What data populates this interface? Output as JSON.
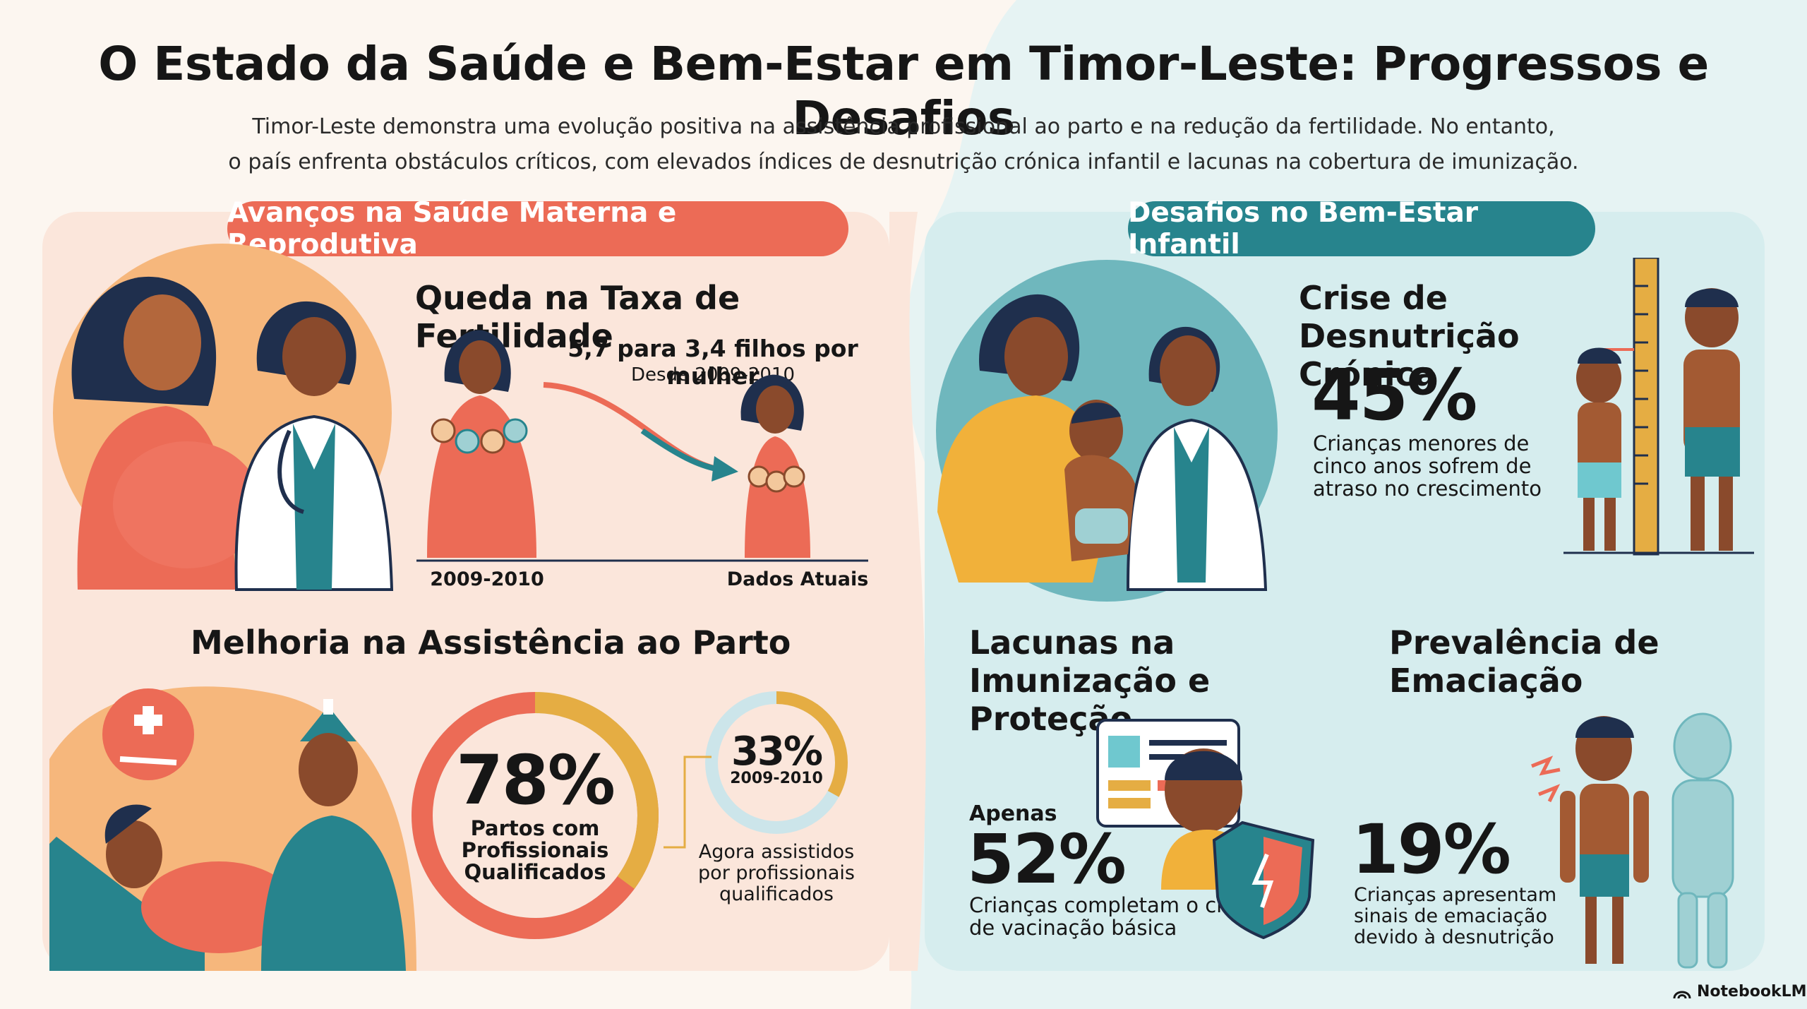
{
  "header": {
    "title": "O Estado da Saúde e Bem-Estar em Timor-Leste: Progressos e Desafios",
    "subtitle_line1": "Timor-Leste demonstra uma evolução positiva na assistência profissional ao parto e na redução da fertilidade. No entanto,",
    "subtitle_line2": "o país enfrenta obstáculos críticos, com elevados índices de desnutrição crónica infantil e lacunas na cobertura de imunização."
  },
  "left": {
    "section_label": "Avanços na Saúde Materna e Reprodutiva",
    "fertility": {
      "heading": "Queda na Taxa de Fertilidade",
      "value_text": "5,7 para 3,4 filhos por mulher",
      "since": "Desde 2009-2010",
      "start_label": "2009-2010",
      "end_label": "Dados Atuais"
    },
    "delivery": {
      "heading": "Melhoria na Assistência ao Parto",
      "current_percent": "78%",
      "current_value": 78,
      "current_label_1": "Partos com",
      "current_label_2": "Profissionais",
      "current_label_3": "Qualificados",
      "past_percent": "33%",
      "past_value": 33,
      "past_year": "2009-2010",
      "past_desc_1": "Agora assistidos",
      "past_desc_2": "por profissionais",
      "past_desc_3": "qualificados"
    }
  },
  "right": {
    "section_label": "Desafios no Bem-Estar Infantil",
    "malnutrition": {
      "heading_1": "Crise de Desnutrição",
      "heading_2": "Crónica",
      "percent": "45%",
      "desc_1": "Crianças menores de",
      "desc_2": "cinco anos sofrem de",
      "desc_3": "atraso no crescimento"
    },
    "immunization": {
      "heading_1": "Lacunas na",
      "heading_2": "Imunização e Proteção",
      "prefix": "Apenas",
      "percent": "52%",
      "desc_1": "Crianças completam o ciclo",
      "desc_2": "de vacinação básica"
    },
    "wasting": {
      "heading_1": "Prevalência de",
      "heading_2": "Emaciação",
      "percent": "19%",
      "desc_1": "Crianças apresentam",
      "desc_2": "sinais de emaciação",
      "desc_3": "devido à desnutrição"
    }
  },
  "footer": {
    "brand": "NotebookLM"
  },
  "colors": {
    "coral": "#ec6b56",
    "teal": "#27848d",
    "mustard": "#e5ad43",
    "light_teal": "#d3ecee",
    "peach": "#fbe5da"
  }
}
